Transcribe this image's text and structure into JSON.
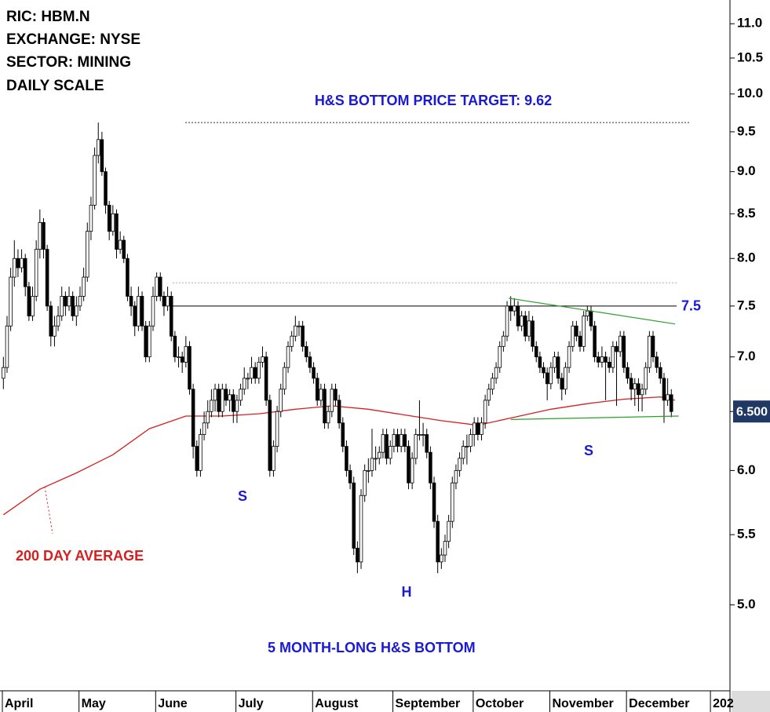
{
  "chart_data": {
    "type": "candlestick",
    "info_lines": [
      "RIC: HBM.N",
      "EXCHANGE: NYSE",
      "SECTOR: MINING",
      "DAILY SCALE"
    ],
    "title": "H&S BOTTOM PRICE TARGET: 9.62",
    "target_level": 9.62,
    "resistance_level": 7.5,
    "upper_dotted_level": 7.74,
    "pattern_labels": [
      "S",
      "H",
      "S"
    ],
    "footnote": "5 MONTH-LONG H&S BOTTOM",
    "last_price": {
      "value": 6.5,
      "label": "6.500"
    },
    "log_scale": true,
    "up_color": "#ffffff",
    "down_color": "#000000",
    "ylim": [
      4.45,
      11.36
    ],
    "yticks": [
      {
        "value": 5,
        "label": "5.0"
      },
      {
        "value": 5.5,
        "label": "5.5"
      },
      {
        "value": 6,
        "label": "6.0"
      },
      {
        "value": 6.5,
        "label": "6.5"
      },
      {
        "value": 7,
        "label": "7.0"
      },
      {
        "value": 7.5,
        "label": "7.5"
      },
      {
        "value": 8,
        "label": "8.0"
      },
      {
        "value": 8.5,
        "label": "8.5"
      },
      {
        "value": 9,
        "label": "9.0"
      },
      {
        "value": 9.5,
        "label": "9.5"
      },
      {
        "value": 10,
        "label": "10.0"
      },
      {
        "value": 10.5,
        "label": "10.5"
      },
      {
        "value": 11,
        "label": "11.0"
      }
    ],
    "xlim": [
      0,
      200
    ],
    "xticks": [
      {
        "value": 0,
        "label": "April"
      },
      {
        "value": 21,
        "label": "May"
      },
      {
        "value": 42,
        "label": "June"
      },
      {
        "value": 64,
        "label": "July"
      },
      {
        "value": 85,
        "label": "August"
      },
      {
        "value": 107,
        "label": "September"
      },
      {
        "value": 129,
        "label": "October"
      },
      {
        "value": 150,
        "label": "November"
      },
      {
        "value": 171,
        "label": "December"
      },
      {
        "value": 194,
        "label": "202"
      }
    ],
    "ohlc": [
      [
        6.8,
        7.0,
        6.7,
        6.9
      ],
      [
        6.9,
        7.4,
        6.85,
        7.3
      ],
      [
        7.3,
        7.9,
        7.25,
        7.8
      ],
      [
        7.8,
        8.2,
        7.7,
        8.0
      ],
      [
        8.0,
        8.1,
        7.8,
        7.9
      ],
      [
        7.9,
        8.1,
        7.85,
        8.0
      ],
      [
        8.0,
        8.05,
        7.6,
        7.7
      ],
      [
        7.7,
        7.75,
        7.35,
        7.4
      ],
      [
        7.4,
        7.7,
        7.35,
        7.6
      ],
      [
        7.6,
        8.2,
        7.55,
        8.1
      ],
      [
        8.1,
        8.55,
        8.0,
        8.4
      ],
      [
        8.4,
        8.45,
        8.0,
        8.1
      ],
      [
        8.1,
        8.15,
        7.45,
        7.5
      ],
      [
        7.5,
        7.55,
        7.1,
        7.2
      ],
      [
        7.2,
        7.4,
        7.1,
        7.3
      ],
      [
        7.3,
        7.5,
        7.25,
        7.4
      ],
      [
        7.4,
        7.7,
        7.35,
        7.6
      ],
      [
        7.6,
        7.65,
        7.4,
        7.5
      ],
      [
        7.5,
        7.7,
        7.45,
        7.6
      ],
      [
        7.6,
        7.65,
        7.35,
        7.4
      ],
      [
        7.4,
        7.6,
        7.3,
        7.5
      ],
      [
        7.5,
        7.7,
        7.45,
        7.6
      ],
      [
        7.6,
        7.9,
        7.55,
        7.8
      ],
      [
        7.8,
        8.4,
        7.75,
        8.3
      ],
      [
        8.3,
        8.7,
        8.2,
        8.6
      ],
      [
        8.6,
        9.3,
        8.55,
        9.2
      ],
      [
        9.2,
        9.62,
        9.1,
        9.4
      ],
      [
        9.4,
        9.5,
        8.95,
        9.0
      ],
      [
        9.0,
        9.05,
        8.5,
        8.6
      ],
      [
        8.6,
        8.65,
        8.2,
        8.3
      ],
      [
        8.3,
        8.6,
        8.25,
        8.5
      ],
      [
        8.5,
        8.55,
        8.0,
        8.1
      ],
      [
        8.1,
        8.3,
        8.05,
        8.2
      ],
      [
        8.2,
        8.25,
        7.95,
        8.0
      ],
      [
        8.0,
        8.05,
        7.55,
        7.6
      ],
      [
        7.6,
        7.7,
        7.4,
        7.5
      ],
      [
        7.5,
        7.55,
        7.2,
        7.3
      ],
      [
        7.3,
        7.7,
        7.25,
        7.6
      ],
      [
        7.6,
        7.65,
        7.25,
        7.3
      ],
      [
        7.3,
        7.35,
        6.95,
        7.0
      ],
      [
        7.0,
        7.35,
        6.95,
        7.3
      ],
      [
        7.3,
        7.7,
        7.25,
        7.6
      ],
      [
        7.6,
        7.85,
        7.55,
        7.8
      ],
      [
        7.8,
        7.85,
        7.55,
        7.6
      ],
      [
        7.6,
        7.65,
        7.4,
        7.5
      ],
      [
        7.5,
        7.7,
        7.45,
        7.6
      ],
      [
        7.6,
        7.65,
        7.15,
        7.2
      ],
      [
        7.2,
        7.25,
        6.95,
        7.0
      ],
      [
        7.0,
        7.1,
        6.9,
        7.0
      ],
      [
        7.0,
        7.05,
        6.85,
        6.95
      ],
      [
        6.95,
        7.2,
        6.9,
        7.1
      ],
      [
        7.1,
        7.15,
        6.65,
        6.7
      ],
      [
        6.7,
        6.75,
        6.1,
        6.2
      ],
      [
        6.2,
        6.25,
        5.95,
        6.0
      ],
      [
        6.0,
        6.35,
        5.95,
        6.3
      ],
      [
        6.3,
        6.5,
        6.25,
        6.4
      ],
      [
        6.4,
        6.6,
        6.35,
        6.5
      ],
      [
        6.5,
        6.7,
        6.45,
        6.6
      ],
      [
        6.6,
        6.75,
        6.5,
        6.7
      ],
      [
        6.7,
        6.75,
        6.45,
        6.5
      ],
      [
        6.5,
        6.75,
        6.45,
        6.7
      ],
      [
        6.7,
        6.75,
        6.55,
        6.6
      ],
      [
        6.6,
        6.7,
        6.5,
        6.65
      ],
      [
        6.65,
        6.7,
        6.4,
        6.5
      ],
      [
        6.5,
        6.65,
        6.4,
        6.6
      ],
      [
        6.6,
        6.75,
        6.55,
        6.7
      ],
      [
        6.7,
        6.9,
        6.65,
        6.8
      ],
      [
        6.8,
        6.85,
        6.7,
        6.8
      ],
      [
        6.8,
        7.0,
        6.75,
        6.9
      ],
      [
        6.9,
        6.95,
        6.75,
        6.8
      ],
      [
        6.8,
        7.0,
        6.75,
        6.95
      ],
      [
        6.95,
        7.1,
        6.9,
        7.0
      ],
      [
        7.0,
        7.05,
        6.55,
        6.6
      ],
      [
        6.6,
        6.65,
        5.95,
        6.0
      ],
      [
        6.0,
        6.25,
        5.95,
        6.2
      ],
      [
        6.2,
        6.55,
        6.15,
        6.5
      ],
      [
        6.5,
        6.75,
        6.45,
        6.7
      ],
      [
        6.7,
        6.95,
        6.65,
        6.9
      ],
      [
        6.9,
        7.15,
        6.85,
        7.1
      ],
      [
        7.1,
        7.25,
        7.05,
        7.2
      ],
      [
        7.2,
        7.4,
        7.15,
        7.3
      ],
      [
        7.3,
        7.35,
        7.2,
        7.3
      ],
      [
        7.3,
        7.35,
        7.05,
        7.1
      ],
      [
        7.1,
        7.15,
        6.95,
        7.0
      ],
      [
        7.0,
        7.05,
        6.85,
        6.9
      ],
      [
        6.9,
        6.95,
        6.75,
        6.8
      ],
      [
        6.8,
        6.85,
        6.55,
        6.6
      ],
      [
        6.6,
        6.75,
        6.55,
        6.7
      ],
      [
        6.7,
        6.75,
        6.35,
        6.4
      ],
      [
        6.4,
        6.55,
        6.35,
        6.5
      ],
      [
        6.5,
        6.75,
        6.45,
        6.7
      ],
      [
        6.7,
        6.75,
        6.55,
        6.6
      ],
      [
        6.6,
        6.65,
        6.35,
        6.4
      ],
      [
        6.4,
        6.45,
        6.15,
        6.2
      ],
      [
        6.2,
        6.25,
        5.95,
        6.0
      ],
      [
        6.0,
        6.05,
        5.85,
        5.9
      ],
      [
        5.9,
        5.95,
        5.35,
        5.4
      ],
      [
        5.4,
        5.45,
        5.22,
        5.3
      ],
      [
        5.3,
        5.85,
        5.25,
        5.8
      ],
      [
        5.8,
        6.05,
        5.75,
        6.0
      ],
      [
        6.0,
        6.1,
        5.9,
        6.0
      ],
      [
        6.0,
        6.35,
        5.95,
        6.1
      ],
      [
        6.1,
        6.2,
        6.0,
        6.1
      ],
      [
        6.1,
        6.2,
        6.05,
        6.15
      ],
      [
        6.15,
        6.35,
        6.1,
        6.3
      ],
      [
        6.3,
        6.35,
        6.05,
        6.1
      ],
      [
        6.1,
        6.25,
        6.05,
        6.2
      ],
      [
        6.2,
        6.35,
        6.15,
        6.3
      ],
      [
        6.3,
        6.35,
        6.15,
        6.2
      ],
      [
        6.2,
        6.35,
        6.15,
        6.3
      ],
      [
        6.3,
        6.35,
        6.15,
        6.2
      ],
      [
        6.2,
        6.25,
        5.85,
        5.9
      ],
      [
        5.9,
        6.15,
        5.85,
        6.1
      ],
      [
        6.1,
        6.35,
        6.05,
        6.3
      ],
      [
        6.3,
        6.6,
        6.25,
        6.3
      ],
      [
        6.3,
        6.4,
        6.2,
        6.3
      ],
      [
        6.3,
        6.35,
        6.1,
        6.15
      ],
      [
        6.15,
        6.2,
        5.85,
        5.9
      ],
      [
        5.9,
        5.95,
        5.55,
        5.6
      ],
      [
        5.6,
        5.65,
        5.22,
        5.3
      ],
      [
        5.3,
        5.4,
        5.25,
        5.35
      ],
      [
        5.35,
        5.5,
        5.3,
        5.45
      ],
      [
        5.45,
        5.65,
        5.4,
        5.6
      ],
      [
        5.6,
        5.95,
        5.55,
        5.9
      ],
      [
        5.9,
        6.05,
        5.85,
        6.0
      ],
      [
        6.0,
        6.15,
        5.95,
        6.1
      ],
      [
        6.1,
        6.25,
        6.05,
        6.2
      ],
      [
        6.2,
        6.3,
        6.05,
        6.2
      ],
      [
        6.2,
        6.35,
        6.15,
        6.3
      ],
      [
        6.3,
        6.45,
        6.2,
        6.4
      ],
      [
        6.4,
        6.45,
        6.25,
        6.3
      ],
      [
        6.3,
        6.45,
        6.25,
        6.4
      ],
      [
        6.4,
        6.65,
        6.35,
        6.6
      ],
      [
        6.6,
        6.75,
        6.55,
        6.7
      ],
      [
        6.7,
        6.85,
        6.65,
        6.8
      ],
      [
        6.8,
        6.95,
        6.75,
        6.9
      ],
      [
        6.9,
        7.15,
        6.85,
        7.1
      ],
      [
        7.1,
        7.25,
        7.05,
        7.2
      ],
      [
        7.2,
        7.55,
        7.15,
        7.5
      ],
      [
        7.5,
        7.6,
        7.35,
        7.45
      ],
      [
        7.45,
        7.58,
        7.4,
        7.5
      ],
      [
        7.5,
        7.55,
        7.25,
        7.3
      ],
      [
        7.3,
        7.45,
        7.25,
        7.4
      ],
      [
        7.4,
        7.45,
        7.15,
        7.2
      ],
      [
        7.2,
        7.45,
        7.15,
        7.35
      ],
      [
        7.35,
        7.4,
        7.05,
        7.1
      ],
      [
        7.1,
        7.15,
        6.95,
        7.0
      ],
      [
        7.0,
        7.05,
        6.85,
        6.9
      ],
      [
        6.9,
        6.95,
        6.8,
        6.85
      ],
      [
        6.85,
        6.9,
        6.6,
        6.75
      ],
      [
        6.75,
        6.95,
        6.7,
        6.9
      ],
      [
        6.9,
        7.05,
        6.85,
        7.0
      ],
      [
        7.0,
        7.05,
        6.75,
        6.8
      ],
      [
        6.8,
        6.85,
        6.6,
        6.7
      ],
      [
        6.7,
        6.95,
        6.65,
        6.9
      ],
      [
        6.9,
        7.15,
        6.85,
        7.1
      ],
      [
        7.1,
        7.35,
        7.05,
        7.3
      ],
      [
        7.3,
        7.35,
        7.15,
        7.2
      ],
      [
        7.2,
        7.25,
        7.05,
        7.1
      ],
      [
        7.1,
        7.45,
        7.05,
        7.4
      ],
      [
        7.4,
        7.5,
        7.35,
        7.45
      ],
      [
        7.45,
        7.5,
        7.25,
        7.3
      ],
      [
        7.3,
        7.35,
        6.95,
        7.0
      ],
      [
        7.0,
        7.05,
        6.9,
        6.95
      ],
      [
        6.95,
        7.1,
        6.9,
        7.0
      ],
      [
        7.0,
        7.05,
        6.6,
        6.95
      ],
      [
        6.95,
        7.0,
        6.85,
        6.9
      ],
      [
        6.9,
        7.15,
        6.85,
        7.1
      ],
      [
        7.1,
        7.15,
        6.55,
        7.05
      ],
      [
        7.05,
        7.25,
        7.0,
        7.2
      ],
      [
        7.2,
        7.25,
        6.85,
        6.9
      ],
      [
        6.9,
        6.95,
        6.75,
        6.8
      ],
      [
        6.8,
        6.85,
        6.6,
        6.7
      ],
      [
        6.7,
        6.8,
        6.55,
        6.75
      ],
      [
        6.75,
        6.8,
        6.5,
        6.65
      ],
      [
        6.65,
        6.75,
        6.5,
        6.7
      ],
      [
        6.7,
        6.95,
        6.65,
        6.9
      ],
      [
        6.9,
        7.25,
        6.85,
        7.2
      ],
      [
        7.2,
        7.25,
        6.95,
        7.0
      ],
      [
        7.0,
        7.05,
        6.85,
        6.9
      ],
      [
        6.9,
        6.95,
        6.75,
        6.8
      ],
      [
        6.8,
        6.85,
        6.4,
        6.6
      ],
      [
        6.6,
        6.8,
        6.55,
        6.65
      ],
      [
        6.65,
        6.7,
        6.45,
        6.5
      ]
    ],
    "moving_average": {
      "name": "200 DAY AVERAGE",
      "color": "#d42020",
      "x": [
        0,
        10,
        20,
        30,
        40,
        50,
        60,
        70,
        80,
        90,
        100,
        110,
        120,
        130,
        140,
        150,
        160,
        170,
        180,
        184
      ],
      "values": [
        5.65,
        5.85,
        5.98,
        6.13,
        6.35,
        6.46,
        6.46,
        6.48,
        6.52,
        6.55,
        6.52,
        6.47,
        6.42,
        6.38,
        6.45,
        6.52,
        6.57,
        6.61,
        6.63,
        6.6
      ]
    },
    "trendlines": [
      {
        "color": "#2e9e2e",
        "x": [
          138.5,
          184
        ],
        "values": [
          7.58,
          7.32
        ]
      },
      {
        "color": "#2e9e2e",
        "x": [
          139,
          185
        ],
        "values": [
          6.43,
          6.46
        ]
      }
    ]
  }
}
